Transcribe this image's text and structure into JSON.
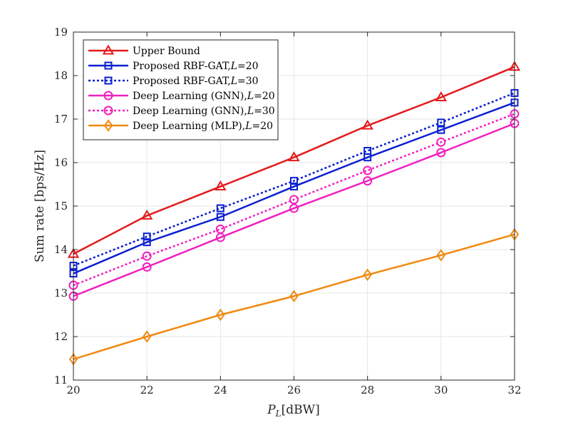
{
  "chart_data": {
    "type": "line",
    "title": "",
    "xlabel_main": "P",
    "xlabel_sub": "L",
    "xlabel_unit": "[dBW]",
    "ylabel": "Sum rate [bps/Hz]",
    "xlim": [
      20,
      32
    ],
    "ylim": [
      11,
      19
    ],
    "grid": true,
    "legend_position": "top-left",
    "x_ticks": [
      20,
      22,
      24,
      26,
      28,
      30,
      32
    ],
    "y_ticks": [
      11,
      12,
      13,
      14,
      15,
      16,
      17,
      18,
      19
    ],
    "x": [
      20,
      22,
      24,
      26,
      28,
      30,
      32
    ],
    "series": [
      {
        "name": "Upper Bound",
        "label_suffix": "",
        "values": [
          13.9,
          14.78,
          15.45,
          16.12,
          16.85,
          17.5,
          18.2
        ],
        "color": "#e31a1c",
        "marker": "triangle",
        "dash": "solid"
      },
      {
        "name": "Proposed RBF-GAT,",
        "label_suffix": "=20",
        "values": [
          13.45,
          14.17,
          14.75,
          15.45,
          16.12,
          16.75,
          17.38
        ],
        "color": "#0a1fd0",
        "marker": "square",
        "dash": "solid"
      },
      {
        "name": "Proposed RBF-GAT,",
        "label_suffix": "=30",
        "values": [
          13.63,
          14.3,
          14.95,
          15.58,
          16.27,
          16.92,
          17.6
        ],
        "color": "#0a1fd0",
        "marker": "square",
        "dash": "dotted"
      },
      {
        "name": "Deep Learning (GNN),",
        "label_suffix": "=20",
        "values": [
          12.93,
          13.6,
          14.28,
          14.95,
          15.58,
          16.23,
          16.9
        ],
        "color": "#f020c0",
        "marker": "circle",
        "dash": "solid"
      },
      {
        "name": "Deep Learning (GNN),",
        "label_suffix": "=30",
        "values": [
          13.18,
          13.85,
          14.47,
          15.15,
          15.82,
          16.47,
          17.12
        ],
        "color": "#f020c0",
        "marker": "circle",
        "dash": "dotted"
      },
      {
        "name": "Deep Learning (MLP),",
        "label_suffix": "=20",
        "values": [
          11.48,
          12.0,
          12.5,
          12.93,
          13.42,
          13.87,
          14.35
        ],
        "color": "#f08a10",
        "marker": "diamond",
        "dash": "solid"
      }
    ]
  }
}
